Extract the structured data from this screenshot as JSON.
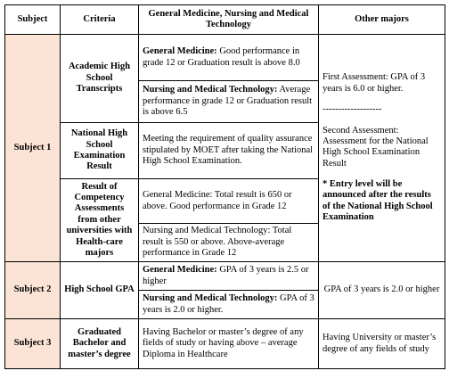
{
  "header": [
    "Subject",
    "Criteria",
    "General Medicine, Nursing and Medical Technology",
    "Other majors"
  ],
  "subjects": [
    {
      "subject": "Subject 1",
      "criteria": [
        {
          "name": "Academic High School Transcripts",
          "requirements": [
            {
              "label": "General Medicine:",
              "text": "Good performance in grade 12 or Graduation result is above 8.0"
            },
            {
              "label": "Nursing and Medical Technology:",
              "text": "Average performance in grade 12 or Graduation result is above 6.5"
            }
          ]
        },
        {
          "name": "National High School Examination Result",
          "requirements": [
            {
              "text": "Meeting the requirement of quality assurance stipulated by MOET after taking the National High School Examination."
            }
          ]
        },
        {
          "name": "Result of Competency Assessments from other universities with Health-care majors",
          "requirements": [
            {
              "text": "General Medicine: Total result is 650 or above. Good performance in Grade 12"
            },
            {
              "text": "Nursing and Medical Technology: Total result is 550 or above. Above-average performance in Grade 12"
            }
          ]
        }
      ],
      "other": [
        "First Assessment: GPA of 3 years is 6.0 or higher.",
        "-------------------",
        "Second Assessment: Assessment for the National High School Examination Result",
        "* Entry level will be announced after the results of the National High School Examination"
      ]
    },
    {
      "subject": "Subject 2",
      "criteria": [
        {
          "name": "High School GPA",
          "requirements": [
            {
              "label": "General Medicine:",
              "text": "GPA of 3 years is 2.5 or higher"
            },
            {
              "label": "Nursing and Medical Technology:",
              "text": "GPA of 3 years is 2.0 or higher."
            }
          ]
        }
      ],
      "other": [
        "GPA of 3 years is 2.0 or higher"
      ]
    },
    {
      "subject": "Subject 3",
      "criteria": [
        {
          "name": "Graduated Bachelor and master’s degree",
          "requirements": [
            {
              "text": "Having Bachelor or master’s degree of any fields of study or having above – average Diploma in Healthcare"
            }
          ]
        }
      ],
      "other": [
        "Having University or master’s degree of any fields of study"
      ]
    }
  ]
}
